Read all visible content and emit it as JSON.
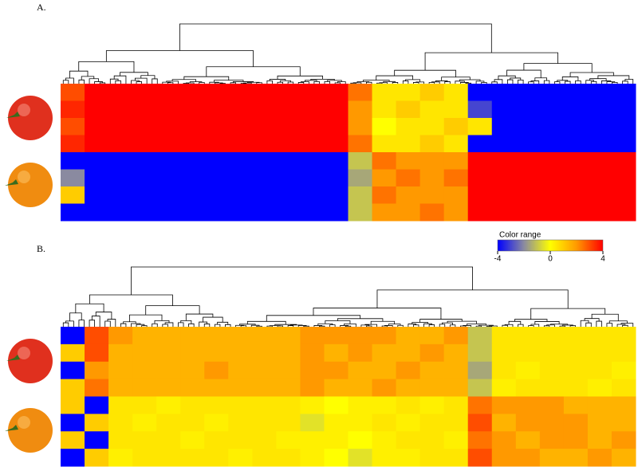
{
  "chart_data": [
    {
      "type": "heatmap",
      "label": "A.",
      "values": [
        [
          3,
          4,
          4,
          4,
          4,
          4,
          4,
          4,
          4,
          4,
          4,
          4,
          2.5,
          0.5,
          0.5,
          1,
          0.5,
          -4,
          -4,
          -4,
          -4,
          -4,
          -4,
          -4
        ],
        [
          3.5,
          4,
          4,
          4,
          4,
          4,
          4,
          4,
          4,
          4,
          4,
          4,
          2,
          0.5,
          1,
          0.5,
          0.5,
          -3,
          -4,
          -4,
          -4,
          -4,
          -4,
          -4
        ],
        [
          3,
          4,
          4,
          4,
          4,
          4,
          4,
          4,
          4,
          4,
          4,
          4,
          2,
          0,
          0.5,
          0.5,
          1,
          0.5,
          -4,
          -4,
          -4,
          -4,
          -4,
          -4
        ],
        [
          3.5,
          4,
          4,
          4,
          4,
          4,
          4,
          4,
          4,
          4,
          4,
          4,
          2.5,
          0.5,
          0.5,
          1,
          0.5,
          -4,
          -4,
          -4,
          -4,
          -4,
          -4,
          -4
        ],
        [
          -4,
          -4,
          -4,
          -4,
          -4,
          -4,
          -4,
          -4,
          -4,
          -4,
          -4,
          -4,
          -1,
          2.5,
          2,
          2,
          2,
          4,
          4,
          4,
          4,
          4,
          4,
          4
        ],
        [
          -2,
          -4,
          -4,
          -4,
          -4,
          -4,
          -4,
          -4,
          -4,
          -4,
          -4,
          -4,
          -1.5,
          2,
          2.5,
          2,
          2.5,
          4,
          4,
          4,
          4,
          4,
          4,
          4
        ],
        [
          1,
          -4,
          -4,
          -4,
          -4,
          -4,
          -4,
          -4,
          -4,
          -4,
          -4,
          -4,
          -1,
          2.5,
          2,
          2,
          2,
          4,
          4,
          4,
          4,
          4,
          4,
          4
        ],
        [
          -4,
          -4,
          -4,
          -4,
          -4,
          -4,
          -4,
          -4,
          -4,
          -4,
          -4,
          -4,
          -1,
          2,
          2,
          2.5,
          2,
          4,
          4,
          4,
          4,
          4,
          4,
          4
        ]
      ]
    },
    {
      "type": "heatmap",
      "label": "B.",
      "values": [
        [
          -4,
          3,
          2,
          1.5,
          1.5,
          1.5,
          1.5,
          1.5,
          1.5,
          1.5,
          2,
          2,
          2,
          2,
          1.5,
          1.5,
          2,
          -1,
          0.5,
          0.5,
          0.5,
          0.5,
          0.5,
          0.5
        ],
        [
          1,
          3,
          1.5,
          1.5,
          1.5,
          1.5,
          1.5,
          1.5,
          1.5,
          1.5,
          2,
          1.5,
          2,
          1.5,
          1.5,
          2,
          1.5,
          -1,
          0.5,
          0.5,
          0.5,
          0.5,
          0.5,
          0.5
        ],
        [
          -4,
          2,
          1.5,
          1.5,
          1.5,
          1.5,
          2,
          1.5,
          1.5,
          1.5,
          2,
          2,
          1.5,
          1.5,
          2,
          1.5,
          1.5,
          -1.5,
          0.5,
          0.3,
          0.5,
          0.5,
          0.5,
          0.3
        ],
        [
          1,
          2.5,
          1.5,
          1.5,
          1.5,
          1.5,
          1.5,
          1.5,
          1.5,
          1.5,
          2,
          1.5,
          1.5,
          2,
          1.5,
          1.5,
          1.5,
          -1,
          0.3,
          0.5,
          0.5,
          0.5,
          0.3,
          0.5
        ],
        [
          1,
          -4,
          0.5,
          0.5,
          0.3,
          0.5,
          0.5,
          0.5,
          0.5,
          0.5,
          0.3,
          0,
          0.3,
          0.3,
          0.5,
          0.3,
          0.5,
          2.5,
          2,
          2,
          2,
          1.5,
          1.5,
          1.5
        ],
        [
          -4,
          1,
          0.5,
          0.3,
          0.5,
          0.5,
          0.3,
          0.5,
          0.5,
          0.5,
          -0.5,
          0.3,
          0.3,
          0.5,
          0.3,
          0.5,
          0.5,
          3,
          1.5,
          2,
          2,
          2,
          1.5,
          1.5
        ],
        [
          1,
          -4,
          0.5,
          0.5,
          0.5,
          0.3,
          0.5,
          0.5,
          0.5,
          0.3,
          0.3,
          0.3,
          0,
          0.3,
          0.5,
          0.5,
          0.3,
          2.5,
          2,
          1.5,
          2,
          2,
          1.5,
          2
        ],
        [
          -4,
          1,
          0.3,
          0.5,
          0.5,
          0.5,
          0.5,
          0.3,
          0.5,
          0.5,
          0.3,
          0,
          -0.5,
          0.3,
          0.3,
          0.5,
          0.5,
          3,
          2,
          2,
          1.5,
          1.5,
          2,
          1.5
        ]
      ],
      "color_scale": {
        "title": "Color range",
        "vlim": [
          -4,
          4
        ],
        "ticks": [
          -4,
          0,
          4
        ],
        "colors": [
          "#0000ff",
          "#8a8aa0",
          "#ffff00",
          "#ff9900",
          "#ff0000"
        ]
      }
    }
  ]
}
